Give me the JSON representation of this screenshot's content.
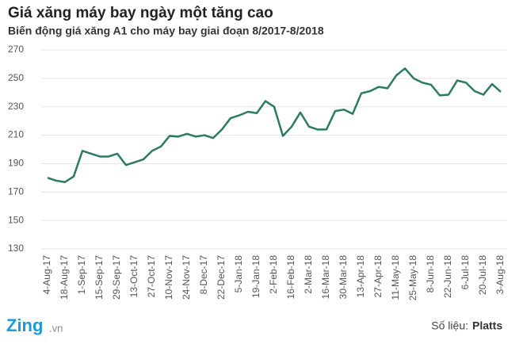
{
  "chart_data": {
    "type": "line",
    "title": "Giá xăng máy bay ngày một tăng cao",
    "subtitle": "Biến động giá xăng A1 cho máy bay giai đoạn 8/2017-8/2018",
    "categories": [
      "4-Aug-17",
      null,
      "18-Aug-17",
      null,
      "1-Sep-17",
      null,
      "15-Sep-17",
      null,
      "29-Sep-17",
      null,
      "13-Oct-17",
      null,
      "27-Oct-17",
      null,
      "10-Nov-17",
      null,
      "24-Nov-17",
      null,
      "8-Dec-17",
      null,
      "22-Dec-17",
      null,
      "5-Jan-18",
      null,
      "19-Jan-18",
      null,
      "2-Feb-18",
      null,
      "16-Feb-18",
      null,
      "2-Mar-18",
      null,
      "16-Mar-18",
      null,
      "30-Mar-18",
      null,
      "13-Apr-18",
      null,
      "27-Apr-18",
      null,
      "11-May-18",
      null,
      "25-May-18",
      null,
      "8-Jun-18",
      null,
      "22-Jun-18",
      null,
      "6-Jul-18",
      null,
      "20-Jul-18",
      null,
      "3-Aug-18"
    ],
    "values": [
      180,
      178,
      177,
      181,
      199,
      197,
      195,
      195,
      197,
      189,
      191,
      193,
      199,
      202,
      209.5,
      209,
      211,
      209,
      210,
      208,
      214,
      222,
      224,
      226.5,
      225.5,
      234,
      230,
      209.5,
      216,
      226,
      216,
      214,
      214,
      227,
      228,
      225,
      239.5,
      241,
      244,
      243,
      252,
      257,
      250,
      247,
      245.5,
      238,
      238.5,
      248.5,
      247,
      241,
      238.5,
      246,
      240.5
    ],
    "color": "#2d7a62",
    "ylim": [
      130,
      270
    ],
    "yticks": [
      130,
      150,
      170,
      190,
      210,
      230,
      250,
      270
    ],
    "grid": true
  },
  "footer": {
    "logo": "Zing",
    "logo_suffix": ".vn",
    "source_label": "Số liệu:",
    "source_name": "Platts"
  }
}
